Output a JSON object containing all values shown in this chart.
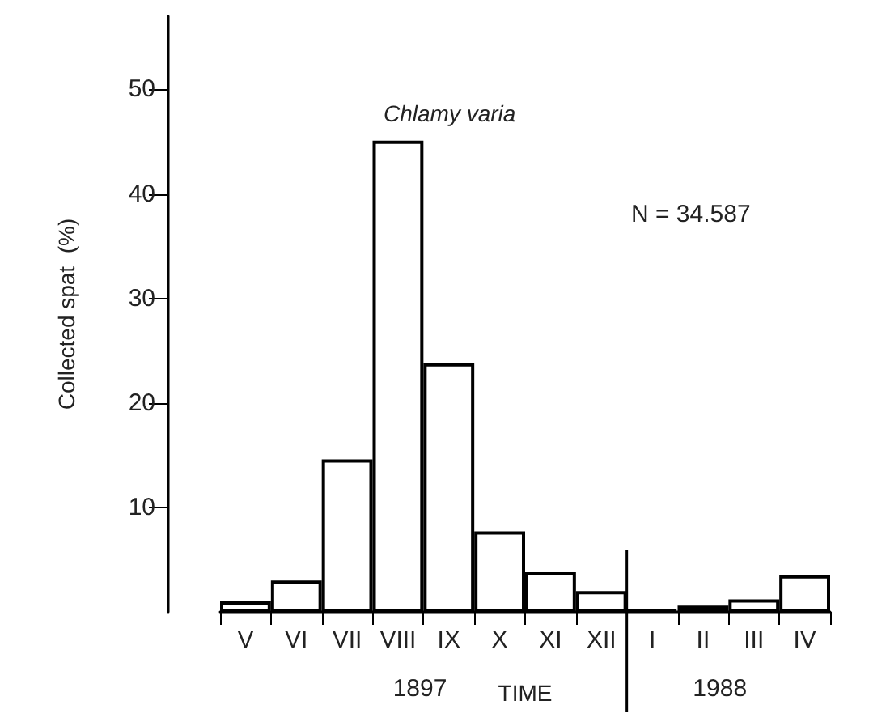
{
  "chart_data": {
    "type": "bar",
    "title": "Chlamy varia",
    "xlabel": "TIME",
    "ylabel": "Collected spat  (%)",
    "annotations": [
      "N = 34.587",
      "1897",
      "1988"
    ],
    "categories": [
      "V",
      "VI",
      "VII",
      "VIII",
      "IX",
      "X",
      "XI",
      "XII",
      "I",
      "II",
      "III",
      "IV"
    ],
    "values": [
      1.0,
      3.0,
      14.6,
      45.1,
      23.8,
      7.7,
      3.8,
      2.0,
      0.2,
      0.6,
      1.2,
      3.5
    ],
    "color": "#000000",
    "ylim": [
      0,
      57
    ],
    "yticks": [
      10,
      20,
      30,
      40,
      50
    ]
  }
}
